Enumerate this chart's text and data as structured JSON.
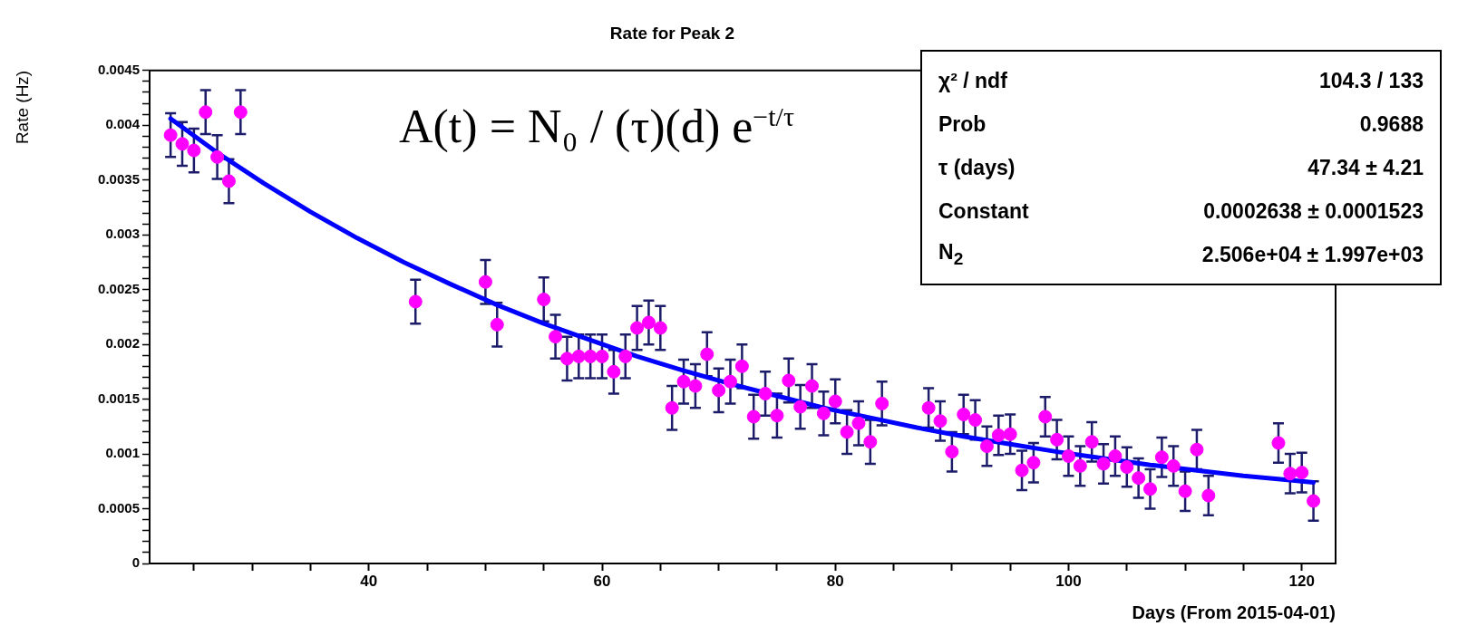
{
  "chart_data": {
    "type": "scatter",
    "title": "Rate for Peak 2",
    "xlabel": "Days (From 2015-04-01)",
    "ylabel": "Rate (Hz)",
    "xlim": [
      21.2,
      122.9
    ],
    "xticks": [
      {
        "value": 25,
        "label": null
      },
      {
        "value": 30,
        "label": null
      },
      {
        "value": 35,
        "label": null
      },
      40,
      {
        "value": 45,
        "label": null
      },
      {
        "value": 50,
        "label": null
      },
      {
        "value": 55,
        "label": null
      },
      60,
      {
        "value": 65,
        "label": null
      },
      {
        "value": 70,
        "label": null
      },
      {
        "value": 75,
        "label": null
      },
      80,
      {
        "value": 85,
        "label": null
      },
      {
        "value": 90,
        "label": null
      },
      {
        "value": 95,
        "label": null
      },
      100,
      {
        "value": 105,
        "label": null
      },
      {
        "value": 110,
        "label": null
      },
      {
        "value": 115,
        "label": null
      },
      120
    ],
    "ylim": [
      0,
      0.0045
    ],
    "yticks": [
      0,
      {
        "value": 0.0001,
        "label": null
      },
      {
        "value": 0.0002,
        "label": null
      },
      {
        "value": 0.0003,
        "label": null
      },
      {
        "value": 0.0004,
        "label": null
      },
      0.0005,
      {
        "value": 0.0006,
        "label": null
      },
      {
        "value": 0.0007,
        "label": null
      },
      {
        "value": 0.0008,
        "label": null
      },
      {
        "value": 0.0009,
        "label": null
      },
      0.001,
      {
        "value": 0.0011,
        "label": null
      },
      {
        "value": 0.0012,
        "label": null
      },
      {
        "value": 0.0013,
        "label": null
      },
      {
        "value": 0.0014,
        "label": null
      },
      0.0015,
      {
        "value": 0.0016,
        "label": null
      },
      {
        "value": 0.0017,
        "label": null
      },
      {
        "value": 0.0018,
        "label": null
      },
      {
        "value": 0.0019,
        "label": null
      },
      0.002,
      {
        "value": 0.0021,
        "label": null
      },
      {
        "value": 0.0022,
        "label": null
      },
      {
        "value": 0.0023,
        "label": null
      },
      {
        "value": 0.0024,
        "label": null
      },
      0.0025,
      {
        "value": 0.0026,
        "label": null
      },
      {
        "value": 0.0027,
        "label": null
      },
      {
        "value": 0.0028,
        "label": null
      },
      {
        "value": 0.0029,
        "label": null
      },
      0.003,
      {
        "value": 0.0031,
        "label": null
      },
      {
        "value": 0.0032,
        "label": null
      },
      {
        "value": 0.0033,
        "label": null
      },
      {
        "value": 0.0034,
        "label": null
      },
      0.0035,
      {
        "value": 0.0036,
        "label": null
      },
      {
        "value": 0.0037,
        "label": null
      },
      {
        "value": 0.0038,
        "label": null
      },
      {
        "value": 0.0039,
        "label": null
      },
      0.004,
      {
        "value": 0.0041,
        "label": null
      },
      {
        "value": 0.0042,
        "label": null
      },
      {
        "value": 0.0043,
        "label": null
      },
      {
        "value": 0.0044,
        "label": null
      },
      0.0045
    ],
    "marker": "circle",
    "series": [
      {
        "type": "scatter",
        "color": "#ff00ff",
        "x": [
          23,
          24,
          25,
          26,
          27,
          28,
          29,
          44,
          50,
          51,
          55,
          56,
          57,
          58,
          59,
          60,
          61,
          62,
          63,
          64,
          65,
          66,
          67,
          68,
          69,
          70,
          71,
          72,
          73,
          74,
          75,
          76,
          77,
          78,
          79,
          80,
          81,
          82,
          83,
          84,
          88,
          89,
          90,
          91,
          92,
          93,
          94,
          95,
          96,
          97,
          98,
          99,
          100,
          101,
          102,
          103,
          104,
          105,
          106,
          107,
          108,
          109,
          110,
          111,
          112,
          118,
          119,
          120,
          121
        ],
        "values": [
          0.00391,
          0.00383,
          0.00377,
          0.00412,
          0.00371,
          0.00349,
          0.00412,
          0.00239,
          0.00257,
          0.00218,
          0.00241,
          0.00207,
          0.00187,
          0.00189,
          0.00189,
          0.00189,
          0.00175,
          0.00189,
          0.00215,
          0.0022,
          0.00215,
          0.00142,
          0.00166,
          0.00162,
          0.00191,
          0.00158,
          0.00166,
          0.0018,
          0.00134,
          0.00155,
          0.00135,
          0.00167,
          0.00143,
          0.00162,
          0.00137,
          0.00148,
          0.0012,
          0.00128,
          0.00111,
          0.00146,
          0.00142,
          0.0013,
          0.00102,
          0.00136,
          0.00131,
          0.00107,
          0.00117,
          0.00118,
          0.00085,
          0.00092,
          0.00134,
          0.00113,
          0.00098,
          0.00089,
          0.00111,
          0.00091,
          0.00098,
          0.00088,
          0.00078,
          0.00068,
          0.00097,
          0.00089,
          0.00066,
          0.00104,
          0.00062,
          0.0011,
          0.00082,
          0.00083,
          0.00057
        ],
        "errors": [
          0.0002,
          0.0002,
          0.0002,
          0.0002,
          0.0002,
          0.0002,
          0.0002,
          0.0002,
          0.0002,
          0.0002,
          0.0002,
          0.0002,
          0.0002,
          0.0002,
          0.0002,
          0.0002,
          0.0002,
          0.0002,
          0.0002,
          0.0002,
          0.0002,
          0.0002,
          0.0002,
          0.0002,
          0.0002,
          0.0002,
          0.0002,
          0.0002,
          0.0002,
          0.0002,
          0.0002,
          0.0002,
          0.0002,
          0.0002,
          0.0002,
          0.0002,
          0.0002,
          0.0002,
          0.0002,
          0.0002,
          0.00018,
          0.00018,
          0.00018,
          0.00018,
          0.00018,
          0.00018,
          0.00018,
          0.00018,
          0.00018,
          0.00018,
          0.00018,
          0.00018,
          0.00018,
          0.00018,
          0.00018,
          0.00018,
          0.00018,
          0.00018,
          0.00018,
          0.00018,
          0.00018,
          0.00018,
          0.00018,
          0.00018,
          0.00018,
          0.00018,
          0.00018,
          0.00018,
          0.00018
        ]
      },
      {
        "type": "line",
        "color": "#0000ff",
        "marker": "none",
        "x": [
          23,
          27,
          31,
          35,
          39,
          43,
          47,
          51,
          55,
          59,
          63,
          67,
          71,
          75,
          79,
          83,
          87,
          91,
          95,
          99,
          103,
          107,
          111,
          115,
          119,
          121
        ],
        "values": [
          0.00406,
          0.00375,
          0.00347,
          0.00321,
          0.00297,
          0.00275,
          0.00255,
          0.00236,
          0.00219,
          0.00204,
          0.00189,
          0.00176,
          0.00164,
          0.00153,
          0.00142,
          0.00133,
          0.00124,
          0.00116,
          0.00109,
          0.00102,
          0.00096,
          0.0009,
          0.00085,
          0.0008,
          0.00076,
          0.00074
        ]
      }
    ],
    "annotations": [
      "A(t) = N₀ / (τ)(d) e$^{−t/τ}$",
      "χ² / ndf\t104.3 / 133",
      "Prob\t0.9688",
      "τ (days)\t47.34 ± 4.21",
      "Constant\t0.0002638 ± 0.0001523",
      "N$_{2}$\t2.506e+04 ± 1.997e+03"
    ]
  }
}
